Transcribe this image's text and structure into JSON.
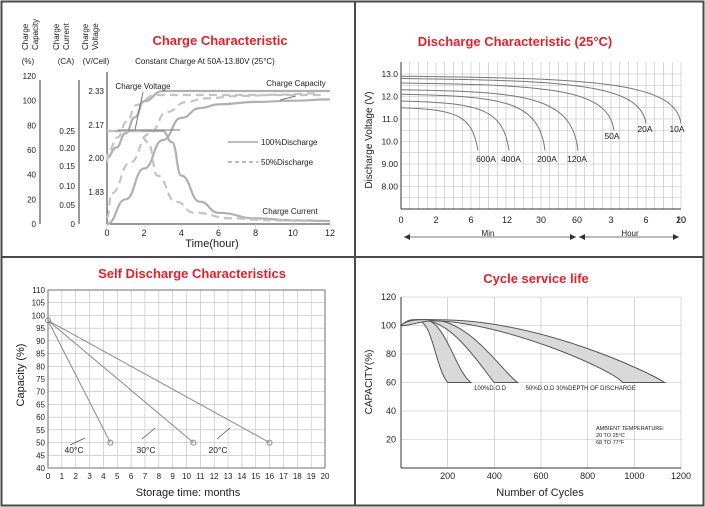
{
  "colors": {
    "title": "#e5202a",
    "border": "#4a4a4a",
    "grid": "#bdbdbd",
    "curve": "#b0b0b0"
  },
  "chart_data": [
    {
      "id": "charge",
      "type": "line",
      "title": "Charge Characteristic",
      "subtitle": "Constant Charge At 50A-13.80V  (25°C)",
      "xlabel": "Time(hour)",
      "xlim": [
        0,
        12
      ],
      "xticks": [
        "0",
        "2",
        "4",
        "6",
        "8",
        "10",
        "12"
      ],
      "axes": [
        {
          "title": "Charge Capacity",
          "unit": "(%)",
          "ticks": [
            "120",
            "100",
            "80",
            "60",
            "40",
            "20",
            "0"
          ],
          "range": [
            0,
            120
          ]
        },
        {
          "title": "Charge Current",
          "unit": "(CA)",
          "ticks": [
            "0.25",
            "0.20",
            "0.15",
            "0.10",
            "0.05",
            "0"
          ],
          "range": [
            0,
            0.25
          ]
        },
        {
          "title": "Charge Voltage",
          "unit": "(V/Cell)",
          "ticks": [
            "2.33",
            "2.17",
            "2.00",
            "1.83"
          ],
          "range": [
            1.75,
            2.35
          ]
        }
      ],
      "curve_labels": [
        "Charge Voltage",
        "Charge Capacity",
        "Charge Current"
      ],
      "legend": [
        "100%Discharge",
        "50%Discharge"
      ],
      "series": [
        {
          "name": "Charge Voltage",
          "axis": 2,
          "x": [
            0,
            0.5,
            1,
            1.5,
            2,
            3,
            4,
            6,
            8,
            10,
            12
          ],
          "y": [
            2.0,
            2.05,
            2.12,
            2.2,
            2.28,
            2.33,
            2.33,
            2.33,
            2.33,
            2.33,
            2.33
          ]
        },
        {
          "name": "Charge Capacity",
          "axis": 0,
          "x": [
            0,
            1,
            2,
            3,
            4,
            5,
            6,
            8,
            10,
            12
          ],
          "y": [
            0,
            20,
            45,
            68,
            86,
            94,
            97,
            99,
            100,
            101
          ]
        },
        {
          "name": "Charge Current",
          "axis": 1,
          "x": [
            0,
            1,
            2,
            3,
            3.5,
            4,
            5,
            6,
            8,
            10,
            12
          ],
          "y": [
            0.25,
            0.25,
            0.25,
            0.25,
            0.22,
            0.13,
            0.06,
            0.03,
            0.015,
            0.01,
            0.008
          ]
        }
      ]
    },
    {
      "id": "discharge",
      "type": "line",
      "title": "Discharge Characteristic  (25°C)",
      "ylabel": "Discharge Voltage (V)",
      "yticks": [
        "13.0",
        "12.0",
        "11.0",
        "10.0",
        "9.00",
        "8.00"
      ],
      "ylim": [
        7.0,
        13.5
      ],
      "xticks": [
        "0",
        "2",
        "6",
        "12",
        "30",
        "60",
        "3",
        "6",
        "10",
        "20"
      ],
      "xgroups": [
        "Min",
        "Hour"
      ],
      "series_labels": [
        "600A",
        "400A",
        "200A",
        "120A",
        "50A",
        "20A",
        "10A"
      ]
    },
    {
      "id": "self_discharge",
      "type": "line",
      "title": "Self Discharge Characteristics",
      "xlabel": "Storage time: months",
      "ylabel": "Capacity (%)",
      "xlim": [
        0,
        20
      ],
      "ylim": [
        40,
        110
      ],
      "xticks": [
        "0",
        "1",
        "2",
        "3",
        "4",
        "5",
        "6",
        "7",
        "8",
        "9",
        "10",
        "11",
        "12",
        "13",
        "14",
        "15",
        "16",
        "17",
        "18",
        "19",
        "20"
      ],
      "yticks": [
        "110",
        "105",
        "100",
        "95",
        "90",
        "85",
        "80",
        "75",
        "70",
        "65",
        "60",
        "55",
        "50",
        "45",
        "40"
      ],
      "series": [
        {
          "name": "40°C",
          "x": [
            0,
            4.5
          ],
          "y": [
            98,
            50
          ]
        },
        {
          "name": "30°C",
          "x": [
            0,
            10.5
          ],
          "y": [
            98,
            50
          ]
        },
        {
          "name": "20°C",
          "x": [
            0,
            16
          ],
          "y": [
            98,
            50
          ]
        }
      ]
    },
    {
      "id": "cycle",
      "type": "line",
      "title": "Cycle service life",
      "xlabel": "Number of Cycles",
      "ylabel": "CAPACITY(%)",
      "xlim": [
        0,
        1200
      ],
      "ylim": [
        0,
        120
      ],
      "xticks": [
        "200",
        "400",
        "600",
        "800",
        "1000",
        "1200"
      ],
      "yticks": [
        "120",
        "100",
        "80",
        "60",
        "40",
        "20"
      ],
      "series_labels": [
        "100%D.O.D",
        "50%D.O.D",
        "30%DEPTH OF DISCHARGE"
      ],
      "note": [
        "AMBIENT TEMPERATURE:",
        "20 TO 25°C",
        "68 TO 77°F"
      ]
    }
  ]
}
